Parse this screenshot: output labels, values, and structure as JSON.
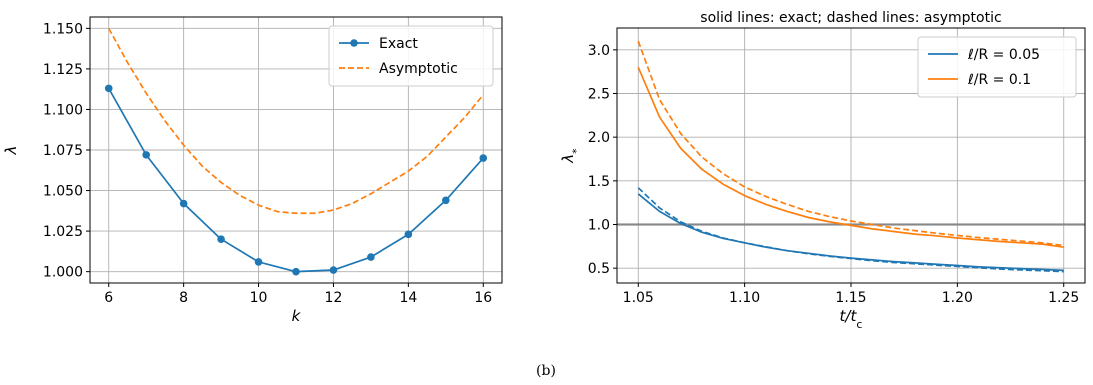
{
  "caption": "(b)",
  "colors": {
    "blue": "#1f77b4",
    "orange": "#ff7f0e",
    "grid": "#b0b0b0",
    "ref": "#808080"
  },
  "chart_data": [
    {
      "type": "line",
      "title": "",
      "xlabel": "k",
      "ylabel": "λ",
      "xlim": [
        5.5,
        16.5
      ],
      "ylim": [
        0.993,
        1.157
      ],
      "xticks": [
        6,
        8,
        10,
        12,
        14,
        16
      ],
      "xtick_labels": [
        "6",
        "8",
        "10",
        "12",
        "14",
        "16"
      ],
      "yticks": [
        1.0,
        1.025,
        1.05,
        1.075,
        1.1,
        1.125,
        1.15
      ],
      "ytick_labels": [
        "1.000",
        "1.025",
        "1.050",
        "1.075",
        "1.100",
        "1.125",
        "1.150"
      ],
      "grid": true,
      "legend_position": "top-right",
      "series": [
        {
          "name": "Exact",
          "style": "solid-markers",
          "color": "#1f77b4",
          "x": [
            6,
            7,
            8,
            9,
            10,
            11,
            12,
            13,
            14,
            15,
            16
          ],
          "y": [
            1.113,
            1.072,
            1.042,
            1.02,
            1.006,
            1.0,
            1.001,
            1.009,
            1.023,
            1.044,
            1.07
          ]
        },
        {
          "name": "Asymptotic",
          "style": "dashed",
          "color": "#ff7f0e",
          "x": [
            6,
            6.5,
            7,
            7.5,
            8,
            8.5,
            9,
            9.5,
            10,
            10.5,
            11,
            11.5,
            12,
            12.5,
            13,
            13.5,
            14,
            14.5,
            15,
            15.5,
            16
          ],
          "y": [
            1.15,
            1.129,
            1.11,
            1.093,
            1.078,
            1.065,
            1.055,
            1.047,
            1.041,
            1.037,
            1.036,
            1.036,
            1.038,
            1.042,
            1.048,
            1.055,
            1.062,
            1.071,
            1.083,
            1.095,
            1.109
          ]
        }
      ]
    },
    {
      "type": "line",
      "title": "solid lines: exact; dashed lines: asymptotic",
      "xlabel": "t/t",
      "xlabel_sub": "c",
      "ylabel": "λ",
      "ylabel_sub": "*",
      "xlim": [
        1.04,
        1.26
      ],
      "ylim": [
        0.33,
        3.25
      ],
      "xticks": [
        1.05,
        1.1,
        1.15,
        1.2,
        1.25
      ],
      "xtick_labels": [
        "1.05",
        "1.10",
        "1.15",
        "1.20",
        "1.25"
      ],
      "yticks": [
        0.5,
        1.0,
        1.5,
        2.0,
        2.5,
        3.0
      ],
      "ytick_labels": [
        "0.5",
        "1.0",
        "1.5",
        "2.0",
        "2.5",
        "3.0"
      ],
      "grid": true,
      "legend_position": "top-right",
      "reference_line_y": 1.0,
      "x": [
        1.05,
        1.06,
        1.07,
        1.08,
        1.09,
        1.1,
        1.11,
        1.12,
        1.13,
        1.14,
        1.15,
        1.16,
        1.17,
        1.18,
        1.19,
        1.2,
        1.21,
        1.22,
        1.23,
        1.24,
        1.25
      ],
      "series": [
        {
          "name": "ℓ/R = 0.05 (exact)",
          "legend_label": "ℓ/R = 0.05",
          "style": "solid",
          "color": "#1f77b4",
          "y": [
            1.35,
            1.15,
            1.01,
            0.91,
            0.84,
            0.79,
            0.74,
            0.7,
            0.67,
            0.64,
            0.615,
            0.595,
            0.575,
            0.56,
            0.545,
            0.53,
            0.515,
            0.505,
            0.495,
            0.485,
            0.475
          ]
        },
        {
          "name": "ℓ/R = 0.05 (asymptotic)",
          "style": "dashed",
          "color": "#1f77b4",
          "y": [
            1.42,
            1.19,
            1.03,
            0.92,
            0.845,
            0.79,
            0.745,
            0.7,
            0.665,
            0.635,
            0.61,
            0.585,
            0.565,
            0.55,
            0.535,
            0.52,
            0.505,
            0.49,
            0.48,
            0.47,
            0.46
          ]
        },
        {
          "name": "ℓ/R = 0.1 (exact)",
          "legend_label": "ℓ/R = 0.1",
          "style": "solid",
          "color": "#ff7f0e",
          "y": [
            2.8,
            2.23,
            1.87,
            1.63,
            1.46,
            1.33,
            1.23,
            1.15,
            1.08,
            1.03,
            0.99,
            0.95,
            0.92,
            0.89,
            0.87,
            0.845,
            0.825,
            0.805,
            0.79,
            0.775,
            0.74
          ]
        },
        {
          "name": "ℓ/R = 0.1 (asymptotic)",
          "style": "dashed",
          "color": "#ff7f0e",
          "y": [
            3.1,
            2.43,
            2.04,
            1.77,
            1.58,
            1.43,
            1.32,
            1.23,
            1.15,
            1.09,
            1.04,
            1.0,
            0.96,
            0.93,
            0.9,
            0.875,
            0.85,
            0.83,
            0.81,
            0.79,
            0.76
          ]
        }
      ]
    }
  ]
}
